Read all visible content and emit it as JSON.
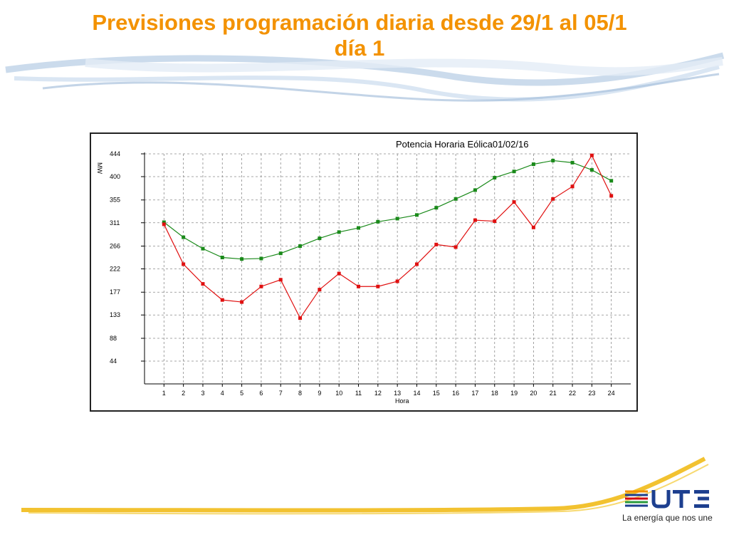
{
  "slide": {
    "title_line1": "Previsiones programación diaria desde 29/1 al 05/1",
    "title_line2": "día 1",
    "title_color": "#f39200"
  },
  "logo": {
    "brand": "UTE",
    "tagline": "La energía que nos une",
    "colors": [
      "#f39200",
      "#1d3f8f",
      "#d10a11",
      "#2a9a3c"
    ]
  },
  "chart_data": {
    "type": "line",
    "title": "Potencia Horaria Eólica01/02/16",
    "xlabel": "Hora",
    "ylabel": "MW",
    "x": [
      1,
      2,
      3,
      4,
      5,
      6,
      7,
      8,
      9,
      10,
      11,
      12,
      13,
      14,
      15,
      16,
      17,
      18,
      19,
      20,
      21,
      22,
      23,
      24
    ],
    "ylim": [
      0,
      444
    ],
    "yticks": [
      44,
      88,
      133,
      177,
      222,
      266,
      311,
      355,
      400,
      444
    ],
    "grid": true,
    "series": [
      {
        "color": "#1a8a1a",
        "values": [
          312,
          283,
          261,
          244,
          241,
          242,
          252,
          266,
          281,
          293,
          301,
          313,
          319,
          326,
          340,
          357,
          374,
          398,
          410,
          424,
          431,
          427,
          413,
          392
        ]
      },
      {
        "color": "#e01010",
        "values": [
          308,
          231,
          193,
          162,
          158,
          188,
          201,
          127,
          182,
          213,
          188,
          188,
          198,
          231,
          269,
          264,
          316,
          314,
          351,
          302,
          357,
          381,
          441,
          363
        ]
      }
    ]
  }
}
